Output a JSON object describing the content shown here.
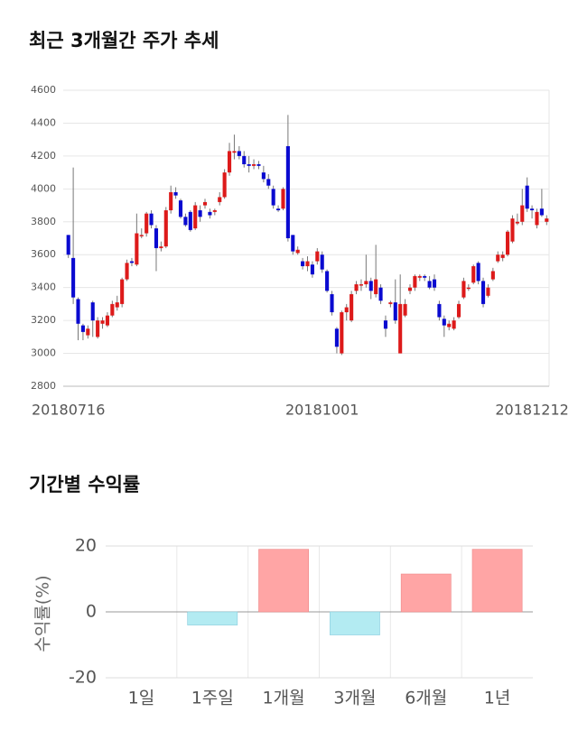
{
  "chart_data": [
    {
      "type": "candlestick",
      "title": "최근 3개월간 주가 추세",
      "categories": [
        "20180716",
        null,
        null,
        null,
        null,
        null,
        null,
        null,
        null,
        null,
        null,
        null,
        null,
        null,
        null,
        null,
        null,
        null,
        null,
        null,
        null,
        null,
        null,
        null,
        null,
        null,
        null,
        null,
        null,
        null,
        null,
        null,
        null,
        null,
        null,
        null,
        null,
        null,
        null,
        null,
        null,
        null,
        null,
        null,
        null,
        null,
        null,
        null,
        null,
        null,
        null,
        null,
        "20181001",
        null,
        null,
        null,
        null,
        null,
        null,
        null,
        null,
        null,
        null,
        null,
        null,
        null,
        null,
        null,
        null,
        null,
        null,
        null,
        null,
        null,
        null,
        null,
        null,
        null,
        null,
        null,
        null,
        null,
        null,
        null,
        null,
        null,
        null,
        null,
        null,
        null,
        null,
        null,
        null,
        null,
        null,
        "20181212",
        null,
        null,
        null
      ],
      "open": [
        3720,
        3580,
        3330,
        3170,
        3110,
        3310,
        3100,
        3180,
        3170,
        3230,
        3280,
        3300,
        3450,
        3560,
        3540,
        3720,
        3730,
        3850,
        3760,
        3640,
        3650,
        3870,
        3980,
        3930,
        3830,
        3860,
        3760,
        3870,
        3900,
        3860,
        3860,
        3920,
        3950,
        4100,
        4220,
        4230,
        4200,
        4150,
        4140,
        4150,
        4100,
        4060,
        4000,
        3880,
        3880,
        4260,
        3720,
        3610,
        3560,
        3530,
        3540,
        3560,
        3600,
        3500,
        3360,
        3150,
        3000,
        3250,
        3200,
        3380,
        3420,
        3420,
        3440,
        3360,
        3400,
        3200,
        3300,
        3310,
        3000,
        3230,
        3380,
        3400,
        3460,
        3470,
        3440,
        3450,
        3300,
        3210,
        3160,
        3150,
        3220,
        3340,
        3400,
        3430,
        3550,
        3440,
        3350,
        3450,
        3560,
        3580,
        3600,
        3680,
        3790,
        3800,
        4020,
        3880,
        3780,
        3880,
        3800
      ],
      "high": [
        3720,
        4130,
        3340,
        3180,
        3170,
        3320,
        3220,
        3220,
        3250,
        3320,
        3350,
        3460,
        3570,
        3580,
        3850,
        3760,
        3860,
        3870,
        3780,
        3680,
        3890,
        4020,
        4010,
        3940,
        3850,
        3870,
        3920,
        3900,
        3940,
        3880,
        3880,
        3980,
        4120,
        4280,
        4330,
        4260,
        4230,
        4200,
        4180,
        4170,
        4140,
        4090,
        4020,
        3900,
        4010,
        4450,
        3720,
        3650,
        3580,
        3590,
        3560,
        3640,
        3620,
        3510,
        3380,
        3160,
        3260,
        3300,
        3380,
        3440,
        3450,
        3600,
        3460,
        3660,
        3420,
        3230,
        3320,
        3450,
        3480,
        3330,
        3420,
        3480,
        3480,
        3480,
        3470,
        3480,
        3320,
        3230,
        3200,
        3220,
        3320,
        3460,
        3420,
        3540,
        3560,
        3460,
        3420,
        3520,
        3620,
        3620,
        3750,
        3840,
        3850,
        4000,
        4070,
        3900,
        3880,
        4000,
        3840
      ],
      "low": [
        3580,
        3300,
        3080,
        3080,
        3090,
        3100,
        3090,
        3150,
        3160,
        3220,
        3260,
        3280,
        3440,
        3530,
        3530,
        3700,
        3710,
        3760,
        3500,
        3620,
        3640,
        3850,
        3940,
        3820,
        3770,
        3740,
        3750,
        3800,
        3880,
        3820,
        3840,
        3900,
        3940,
        4080,
        4180,
        4180,
        4130,
        4100,
        4120,
        4120,
        4040,
        4000,
        3880,
        3860,
        3870,
        3680,
        3600,
        3600,
        3510,
        3500,
        3460,
        3540,
        3490,
        3370,
        3230,
        3000,
        2990,
        3200,
        3190,
        3360,
        3380,
        3400,
        3330,
        3340,
        3300,
        3100,
        3280,
        3180,
        3000,
        3220,
        3360,
        3380,
        3440,
        3440,
        3390,
        3380,
        3200,
        3100,
        3140,
        3140,
        3210,
        3330,
        3380,
        3420,
        3420,
        3280,
        3340,
        3440,
        3550,
        3560,
        3590,
        3670,
        3780,
        3780,
        3860,
        3820,
        3760,
        3830,
        3780
      ],
      "close": [
        3600,
        3340,
        3180,
        3130,
        3150,
        3200,
        3200,
        3200,
        3230,
        3300,
        3310,
        3450,
        3550,
        3550,
        3730,
        3720,
        3850,
        3780,
        3640,
        3650,
        3870,
        3980,
        3960,
        3830,
        3780,
        3750,
        3900,
        3830,
        3920,
        3840,
        3870,
        3950,
        4100,
        4230,
        4230,
        4200,
        4150,
        4140,
        4150,
        4140,
        4060,
        4020,
        3900,
        3870,
        4000,
        3700,
        3620,
        3630,
        3530,
        3560,
        3480,
        3620,
        3510,
        3380,
        3250,
        3040,
        3250,
        3280,
        3360,
        3420,
        3420,
        3440,
        3380,
        3450,
        3320,
        3150,
        3310,
        3200,
        3300,
        3300,
        3400,
        3470,
        3470,
        3460,
        3400,
        3400,
        3220,
        3170,
        3180,
        3200,
        3300,
        3440,
        3400,
        3530,
        3440,
        3300,
        3400,
        3500,
        3600,
        3600,
        3740,
        3820,
        3800,
        3900,
        3880,
        3870,
        3860,
        3840,
        3820
      ],
      "up_color": "#dd1a1a",
      "down_color": "#0a0ad0",
      "ylim": [
        2800,
        4600
      ],
      "yticks": [
        2800,
        3000,
        3200,
        3400,
        3600,
        3800,
        4000,
        4200,
        4400,
        4600
      ],
      "grid": true
    },
    {
      "type": "bar",
      "title": "기간별 수익률",
      "ylabel": "수익률(%)",
      "categories": [
        "1일",
        "1주일",
        "1개월",
        "3개월",
        "6개월",
        "1년"
      ],
      "values": [
        0,
        -4,
        19,
        -7,
        11.5,
        19
      ],
      "positive_color": "#ffa5a5",
      "negative_color": "#b3ebf2",
      "ylim": [
        -20,
        20
      ],
      "yticks": [
        -20,
        0,
        20
      ],
      "grid": true
    }
  ]
}
